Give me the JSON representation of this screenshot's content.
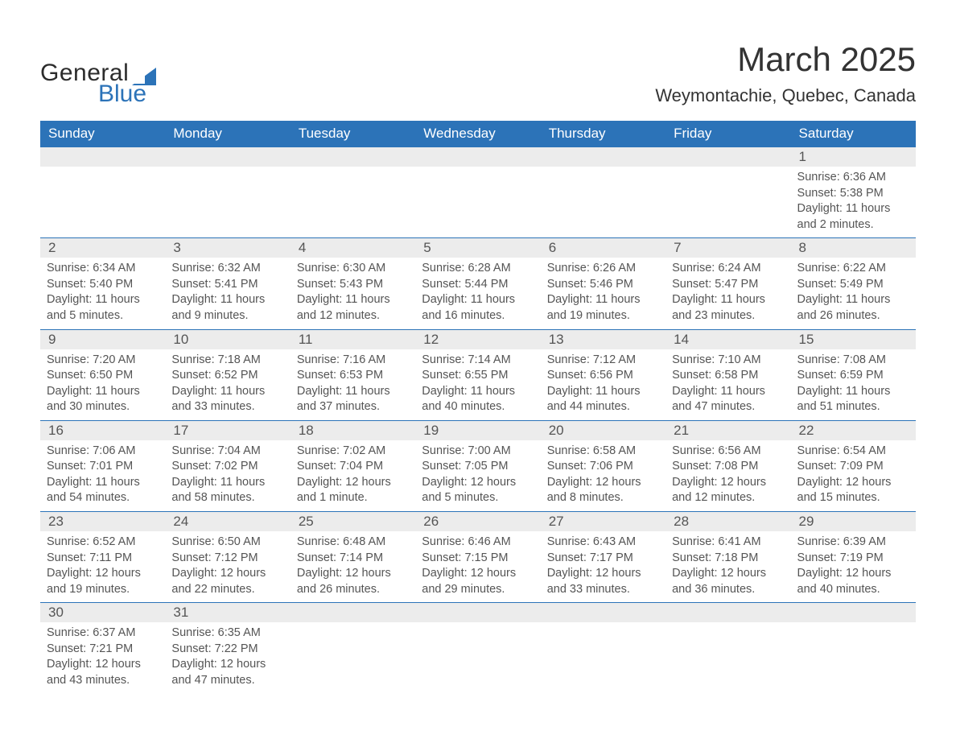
{
  "logo": {
    "text1": "General",
    "text2": "Blue",
    "shape_color": "#2c73b8",
    "text1_color": "#2c2c2c"
  },
  "header": {
    "month_title": "March 2025",
    "location": "Weymontachie, Quebec, Canada"
  },
  "styling": {
    "header_bg": "#2c73b8",
    "header_fg": "#ffffff",
    "daynum_bg": "#ececec",
    "border_color": "#2c73b8",
    "text_color": "#555555",
    "title_fontsize": 42,
    "location_fontsize": 22,
    "dayhead_fontsize": 17,
    "body_fontsize": 14.5
  },
  "day_headers": [
    "Sunday",
    "Monday",
    "Tuesday",
    "Wednesday",
    "Thursday",
    "Friday",
    "Saturday"
  ],
  "weeks": [
    [
      {
        "num": "",
        "lines": []
      },
      {
        "num": "",
        "lines": []
      },
      {
        "num": "",
        "lines": []
      },
      {
        "num": "",
        "lines": []
      },
      {
        "num": "",
        "lines": []
      },
      {
        "num": "",
        "lines": []
      },
      {
        "num": "1",
        "lines": [
          "Sunrise: 6:36 AM",
          "Sunset: 5:38 PM",
          "Daylight: 11 hours and 2 minutes."
        ]
      }
    ],
    [
      {
        "num": "2",
        "lines": [
          "Sunrise: 6:34 AM",
          "Sunset: 5:40 PM",
          "Daylight: 11 hours and 5 minutes."
        ]
      },
      {
        "num": "3",
        "lines": [
          "Sunrise: 6:32 AM",
          "Sunset: 5:41 PM",
          "Daylight: 11 hours and 9 minutes."
        ]
      },
      {
        "num": "4",
        "lines": [
          "Sunrise: 6:30 AM",
          "Sunset: 5:43 PM",
          "Daylight: 11 hours and 12 minutes."
        ]
      },
      {
        "num": "5",
        "lines": [
          "Sunrise: 6:28 AM",
          "Sunset: 5:44 PM",
          "Daylight: 11 hours and 16 minutes."
        ]
      },
      {
        "num": "6",
        "lines": [
          "Sunrise: 6:26 AM",
          "Sunset: 5:46 PM",
          "Daylight: 11 hours and 19 minutes."
        ]
      },
      {
        "num": "7",
        "lines": [
          "Sunrise: 6:24 AM",
          "Sunset: 5:47 PM",
          "Daylight: 11 hours and 23 minutes."
        ]
      },
      {
        "num": "8",
        "lines": [
          "Sunrise: 6:22 AM",
          "Sunset: 5:49 PM",
          "Daylight: 11 hours and 26 minutes."
        ]
      }
    ],
    [
      {
        "num": "9",
        "lines": [
          "Sunrise: 7:20 AM",
          "Sunset: 6:50 PM",
          "Daylight: 11 hours and 30 minutes."
        ]
      },
      {
        "num": "10",
        "lines": [
          "Sunrise: 7:18 AM",
          "Sunset: 6:52 PM",
          "Daylight: 11 hours and 33 minutes."
        ]
      },
      {
        "num": "11",
        "lines": [
          "Sunrise: 7:16 AM",
          "Sunset: 6:53 PM",
          "Daylight: 11 hours and 37 minutes."
        ]
      },
      {
        "num": "12",
        "lines": [
          "Sunrise: 7:14 AM",
          "Sunset: 6:55 PM",
          "Daylight: 11 hours and 40 minutes."
        ]
      },
      {
        "num": "13",
        "lines": [
          "Sunrise: 7:12 AM",
          "Sunset: 6:56 PM",
          "Daylight: 11 hours and 44 minutes."
        ]
      },
      {
        "num": "14",
        "lines": [
          "Sunrise: 7:10 AM",
          "Sunset: 6:58 PM",
          "Daylight: 11 hours and 47 minutes."
        ]
      },
      {
        "num": "15",
        "lines": [
          "Sunrise: 7:08 AM",
          "Sunset: 6:59 PM",
          "Daylight: 11 hours and 51 minutes."
        ]
      }
    ],
    [
      {
        "num": "16",
        "lines": [
          "Sunrise: 7:06 AM",
          "Sunset: 7:01 PM",
          "Daylight: 11 hours and 54 minutes."
        ]
      },
      {
        "num": "17",
        "lines": [
          "Sunrise: 7:04 AM",
          "Sunset: 7:02 PM",
          "Daylight: 11 hours and 58 minutes."
        ]
      },
      {
        "num": "18",
        "lines": [
          "Sunrise: 7:02 AM",
          "Sunset: 7:04 PM",
          "Daylight: 12 hours and 1 minute."
        ]
      },
      {
        "num": "19",
        "lines": [
          "Sunrise: 7:00 AM",
          "Sunset: 7:05 PM",
          "Daylight: 12 hours and 5 minutes."
        ]
      },
      {
        "num": "20",
        "lines": [
          "Sunrise: 6:58 AM",
          "Sunset: 7:06 PM",
          "Daylight: 12 hours and 8 minutes."
        ]
      },
      {
        "num": "21",
        "lines": [
          "Sunrise: 6:56 AM",
          "Sunset: 7:08 PM",
          "Daylight: 12 hours and 12 minutes."
        ]
      },
      {
        "num": "22",
        "lines": [
          "Sunrise: 6:54 AM",
          "Sunset: 7:09 PM",
          "Daylight: 12 hours and 15 minutes."
        ]
      }
    ],
    [
      {
        "num": "23",
        "lines": [
          "Sunrise: 6:52 AM",
          "Sunset: 7:11 PM",
          "Daylight: 12 hours and 19 minutes."
        ]
      },
      {
        "num": "24",
        "lines": [
          "Sunrise: 6:50 AM",
          "Sunset: 7:12 PM",
          "Daylight: 12 hours and 22 minutes."
        ]
      },
      {
        "num": "25",
        "lines": [
          "Sunrise: 6:48 AM",
          "Sunset: 7:14 PM",
          "Daylight: 12 hours and 26 minutes."
        ]
      },
      {
        "num": "26",
        "lines": [
          "Sunrise: 6:46 AM",
          "Sunset: 7:15 PM",
          "Daylight: 12 hours and 29 minutes."
        ]
      },
      {
        "num": "27",
        "lines": [
          "Sunrise: 6:43 AM",
          "Sunset: 7:17 PM",
          "Daylight: 12 hours and 33 minutes."
        ]
      },
      {
        "num": "28",
        "lines": [
          "Sunrise: 6:41 AM",
          "Sunset: 7:18 PM",
          "Daylight: 12 hours and 36 minutes."
        ]
      },
      {
        "num": "29",
        "lines": [
          "Sunrise: 6:39 AM",
          "Sunset: 7:19 PM",
          "Daylight: 12 hours and 40 minutes."
        ]
      }
    ],
    [
      {
        "num": "30",
        "lines": [
          "Sunrise: 6:37 AM",
          "Sunset: 7:21 PM",
          "Daylight: 12 hours and 43 minutes."
        ]
      },
      {
        "num": "31",
        "lines": [
          "Sunrise: 6:35 AM",
          "Sunset: 7:22 PM",
          "Daylight: 12 hours and 47 minutes."
        ]
      },
      {
        "num": "",
        "lines": []
      },
      {
        "num": "",
        "lines": []
      },
      {
        "num": "",
        "lines": []
      },
      {
        "num": "",
        "lines": []
      },
      {
        "num": "",
        "lines": []
      }
    ]
  ]
}
